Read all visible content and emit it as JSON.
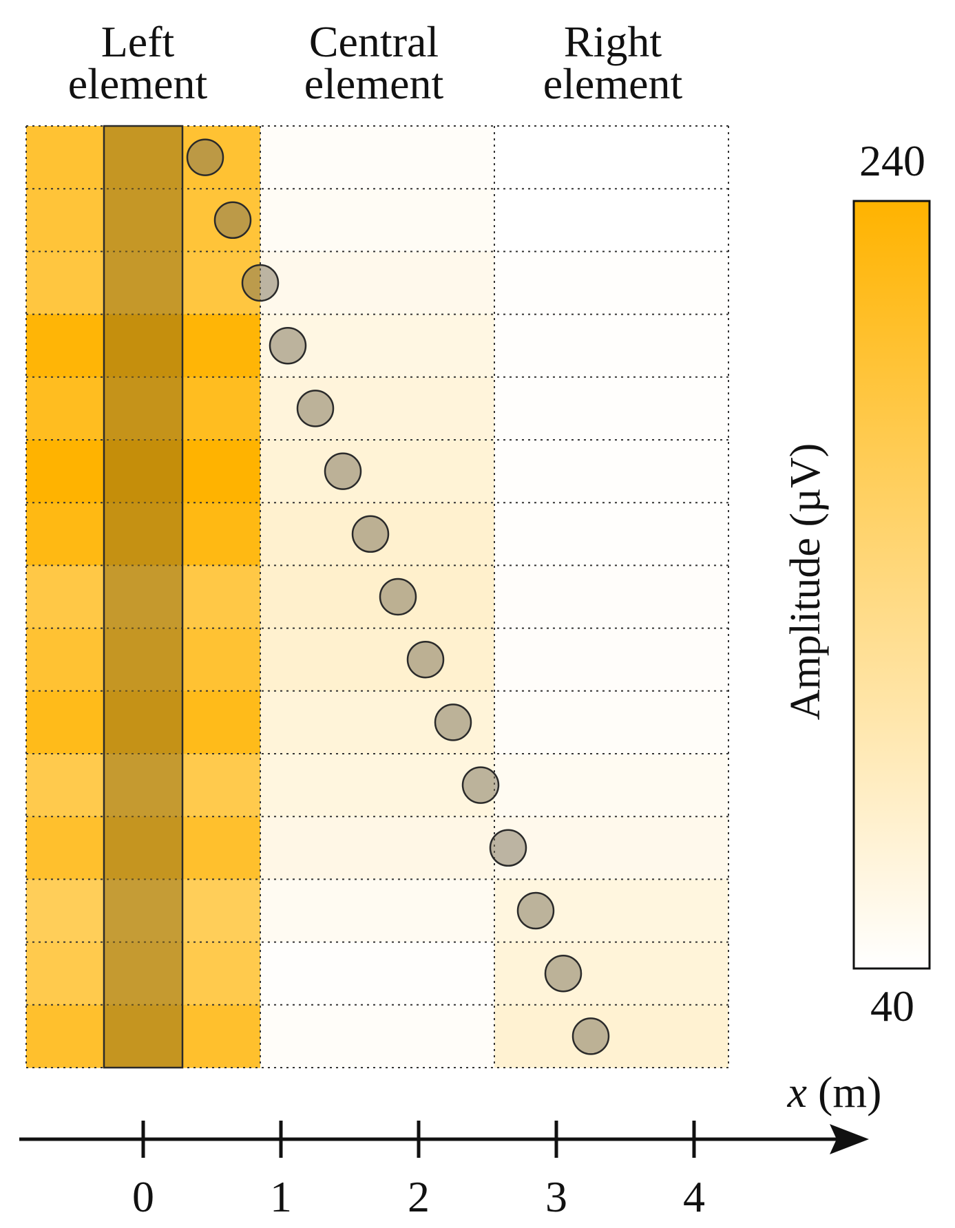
{
  "chart_data": {
    "type": "heatmap",
    "columns": [
      {
        "label_line1": "Left",
        "label_line2": "element"
      },
      {
        "label_line1": "Central",
        "label_line2": "element"
      },
      {
        "label_line1": "Right",
        "label_line2": "element"
      }
    ],
    "rows": 15,
    "amplitudes": [
      [
        200,
        45,
        40
      ],
      [
        195,
        48,
        40
      ],
      [
        190,
        55,
        42
      ],
      [
        235,
        62,
        42
      ],
      [
        215,
        68,
        42
      ],
      [
        240,
        72,
        42
      ],
      [
        225,
        78,
        42
      ],
      [
        185,
        80,
        44
      ],
      [
        200,
        78,
        44
      ],
      [
        220,
        70,
        45
      ],
      [
        180,
        65,
        50
      ],
      [
        205,
        60,
        55
      ],
      [
        170,
        50,
        65
      ],
      [
        180,
        42,
        70
      ],
      [
        205,
        45,
        75
      ]
    ],
    "colorbar": {
      "label": "Amplitude (µV)",
      "min": 40,
      "max": 240,
      "min_label": "40",
      "max_label": "240",
      "color_low": "#ffffff",
      "color_high": "#ffb300"
    },
    "x_axis": {
      "label_var": "x",
      "label_unit": " (m)",
      "ticks": [
        0,
        1,
        2,
        3,
        4
      ],
      "tick_labels": [
        "0",
        "1",
        "2",
        "3",
        "4"
      ]
    },
    "highlight_bar": {
      "x_center": 0,
      "color": "#8b6914"
    },
    "trajectory": {
      "points": [
        {
          "x": 0.45,
          "row": 0
        },
        {
          "x": 0.65,
          "row": 1
        },
        {
          "x": 0.85,
          "row": 2
        },
        {
          "x": 1.05,
          "row": 3
        },
        {
          "x": 1.25,
          "row": 4
        },
        {
          "x": 1.45,
          "row": 5
        },
        {
          "x": 1.65,
          "row": 6
        },
        {
          "x": 1.85,
          "row": 7
        },
        {
          "x": 2.05,
          "row": 8
        },
        {
          "x": 2.25,
          "row": 9
        },
        {
          "x": 2.45,
          "row": 10
        },
        {
          "x": 2.65,
          "row": 11
        },
        {
          "x": 2.85,
          "row": 12
        },
        {
          "x": 3.05,
          "row": 13
        },
        {
          "x": 3.25,
          "row": 14
        }
      ],
      "color": "#7a7058"
    }
  }
}
